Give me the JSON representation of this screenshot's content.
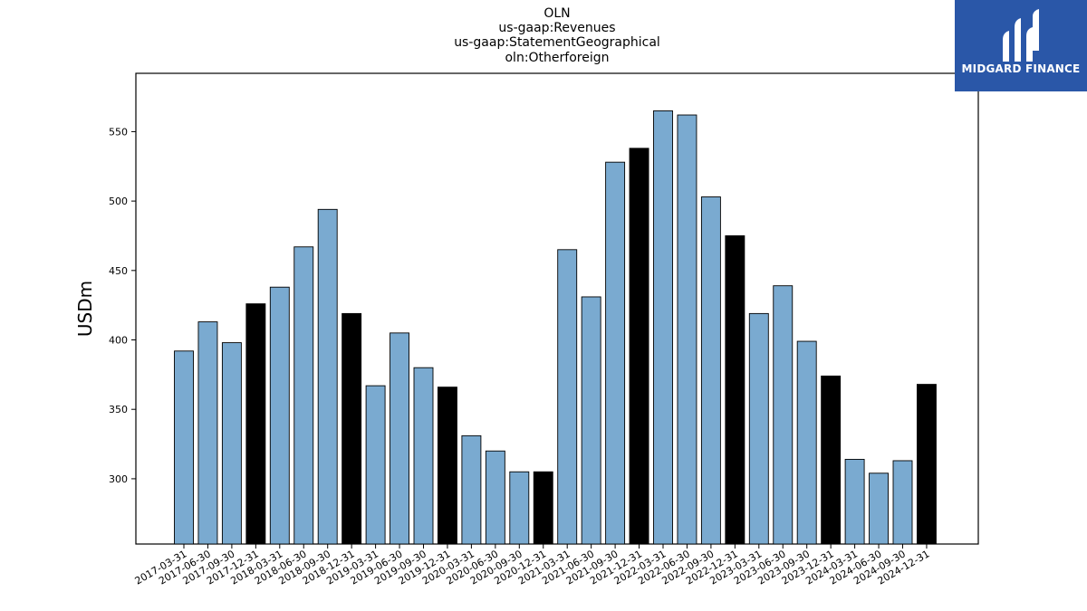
{
  "title_lines": [
    "OLN",
    "us-gaap:Revenues",
    "us-gaap:StatementGeographical",
    "oln:Otherforeign"
  ],
  "logo": {
    "text": "MIDGARD FINANCE",
    "bg_color": "#2a57a8"
  },
  "colors": {
    "regular_bar": "#7aaad0",
    "q4_bar": "#000000",
    "edge": "#000000"
  },
  "chart_data": {
    "type": "bar",
    "title": "OLN us-gaap:Revenues us-gaap:StatementGeographical oln:Otherforeign",
    "ylabel": "USDm",
    "xlabel": "",
    "ylim": [
      253,
      592
    ],
    "yticks": [
      300,
      350,
      400,
      450,
      500,
      550
    ],
    "grid": false,
    "categories": [
      "2017-03-31",
      "2017-06-30",
      "2017-09-30",
      "2017-12-31",
      "2018-03-31",
      "2018-06-30",
      "2018-09-30",
      "2018-12-31",
      "2019-03-31",
      "2019-06-30",
      "2019-09-30",
      "2019-12-31",
      "2020-03-31",
      "2020-06-30",
      "2020-09-30",
      "2020-12-31",
      "2021-03-31",
      "2021-06-30",
      "2021-09-30",
      "2021-12-31",
      "2022-03-31",
      "2022-06-30",
      "2022-09-30",
      "2022-12-31",
      "2023-03-31",
      "2023-06-30",
      "2023-09-30",
      "2023-12-31",
      "2024-03-31",
      "2024-06-30",
      "2024-09-30",
      "2024-12-31"
    ],
    "values": [
      392,
      413,
      398,
      426,
      438,
      467,
      494,
      419,
      367,
      405,
      380,
      366,
      331,
      320,
      305,
      305,
      465,
      431,
      528,
      538,
      565,
      562,
      503,
      475,
      419,
      439,
      399,
      374,
      314,
      304,
      313,
      368
    ],
    "highlight": [
      false,
      false,
      false,
      true,
      false,
      false,
      false,
      true,
      false,
      false,
      false,
      true,
      false,
      false,
      false,
      true,
      false,
      false,
      false,
      true,
      false,
      false,
      false,
      true,
      false,
      false,
      false,
      true,
      false,
      false,
      false,
      true
    ]
  }
}
